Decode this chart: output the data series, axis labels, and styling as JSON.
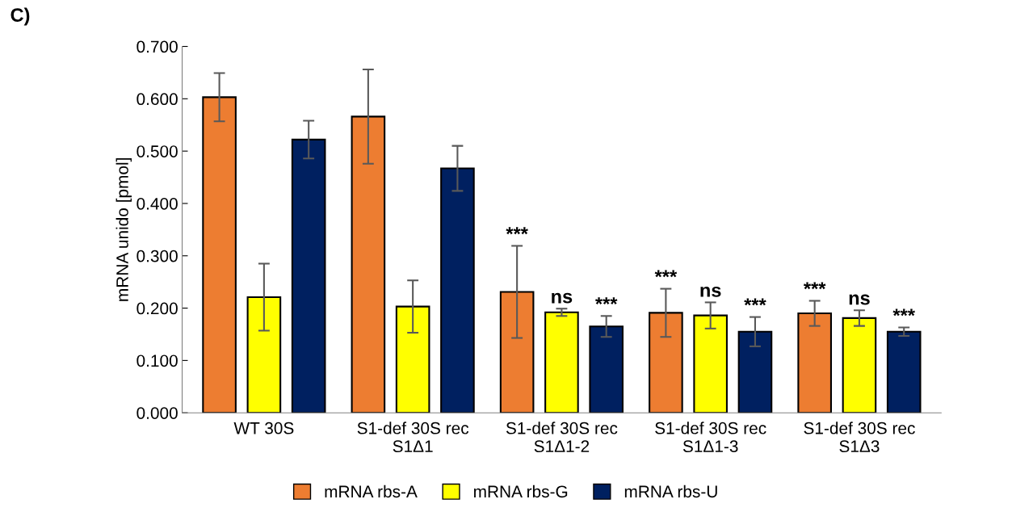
{
  "chart_data": {
    "type": "bar",
    "ylabel": "mRNA unido [pmol]",
    "annotations": [
      "C)"
    ],
    "categories": [
      "WT 30S",
      "S1-def 30S rec\nS1Δ1",
      "S1-def 30S rec\nS1Δ1-2",
      "S1-def 30S rec\nS1Δ1-3",
      "S1-def 30S rec\nS1Δ3"
    ],
    "series": [
      {
        "name": "mRNA rbs-A",
        "color": "#ed7d31",
        "values": [
          0.603,
          0.566,
          0.231,
          0.191,
          0.19
        ],
        "errors": [
          0.046,
          0.09,
          0.088,
          0.046,
          0.024
        ],
        "value_labels": [
          null,
          null,
          "***",
          "***",
          "***"
        ]
      },
      {
        "name": "mRNA rbs-G",
        "color": "#ffff00",
        "values": [
          0.221,
          0.203,
          0.192,
          0.186,
          0.181
        ],
        "errors": [
          0.064,
          0.05,
          0.007,
          0.025,
          0.015
        ],
        "value_labels": [
          null,
          null,
          "ns",
          "ns",
          "ns"
        ]
      },
      {
        "name": "mRNA rbs-U",
        "color": "#002060",
        "values": [
          0.522,
          0.467,
          0.165,
          0.155,
          0.155
        ],
        "errors": [
          0.036,
          0.043,
          0.02,
          0.028,
          0.008
        ],
        "value_labels": [
          null,
          null,
          "***",
          "***",
          "***"
        ]
      }
    ],
    "ylim": [
      0,
      0.7
    ],
    "yticks": [
      {
        "value": 0,
        "label": "0.000"
      },
      {
        "value": 0.1,
        "label": "0.100"
      },
      {
        "value": 0.2,
        "label": "0.200"
      },
      {
        "value": 0.3,
        "label": "0.300"
      },
      {
        "value": 0.4,
        "label": "0.400"
      },
      {
        "value": 0.5,
        "label": "0.500"
      },
      {
        "value": 0.6,
        "label": "0.600"
      },
      {
        "value": 0.7,
        "label": "0.700"
      }
    ],
    "grid": false,
    "legend": "bottom"
  }
}
